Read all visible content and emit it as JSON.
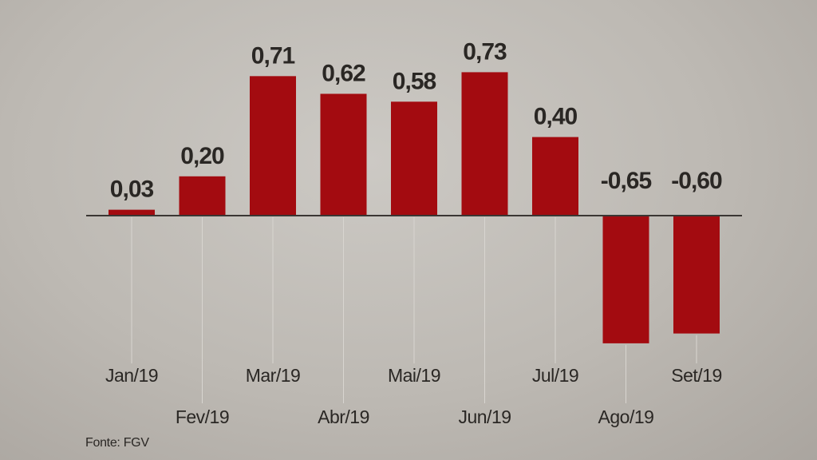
{
  "chart_data": {
    "type": "bar",
    "categories": [
      "Jan/19",
      "Fev/19",
      "Mar/19",
      "Abr/19",
      "Mai/19",
      "Jun/19",
      "Jul/19",
      "Ago/19",
      "Set/19"
    ],
    "values": [
      0.03,
      0.2,
      0.71,
      0.62,
      0.58,
      0.73,
      0.4,
      -0.65,
      -0.6
    ],
    "value_labels": [
      "0,03",
      "0,20",
      "0,71",
      "0,62",
      "0,58",
      "0,73",
      "0,40",
      "-0,65",
      "-0,60"
    ],
    "title": "",
    "xlabel": "",
    "ylabel": "",
    "ylim": [
      -0.7,
      0.75
    ],
    "grid": false,
    "bar_color": "#a30b10",
    "zero_line_color": "#3a3633"
  },
  "source": "Fonte: FGV"
}
